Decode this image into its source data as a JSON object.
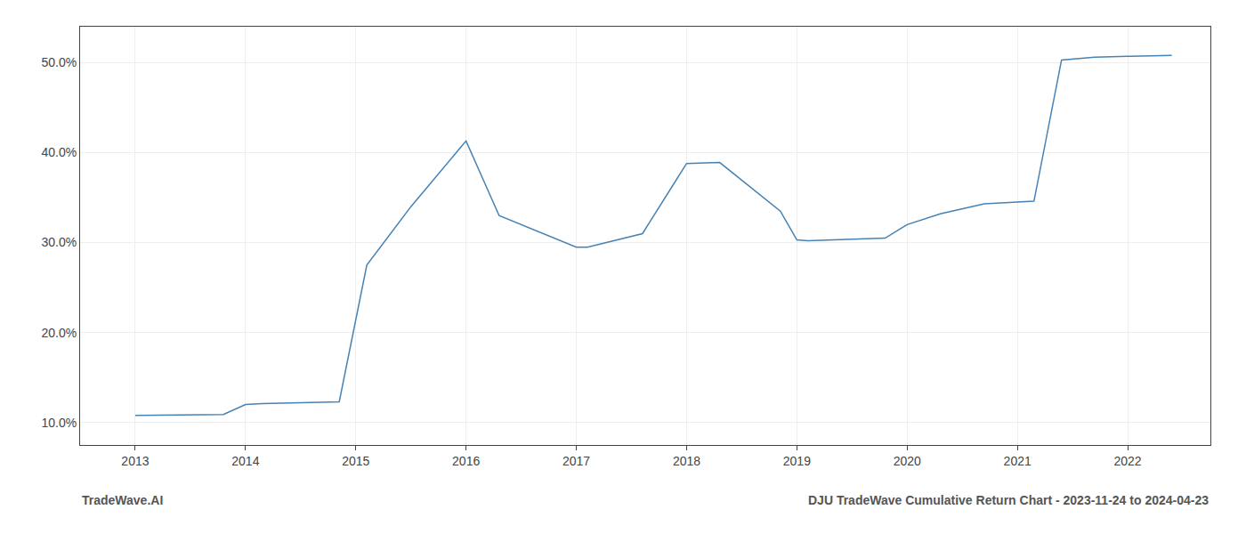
{
  "chart_data": {
    "type": "line",
    "title": "DJU TradeWave Cumulative Return Chart - 2023-11-24 to 2024-04-23",
    "annotations": [
      "TradeWave.AI"
    ],
    "x": [
      2013.0,
      2013.8,
      2014.0,
      2014.15,
      2014.85,
      2015.1,
      2015.5,
      2016.0,
      2016.3,
      2017.0,
      2017.1,
      2017.6,
      2018.0,
      2018.3,
      2018.85,
      2019.0,
      2019.1,
      2019.8,
      2020.0,
      2020.3,
      2020.7,
      2021.0,
      2021.15,
      2021.4,
      2021.7,
      2022.0,
      2022.4
    ],
    "values": [
      10.8,
      10.9,
      12.0,
      12.1,
      12.3,
      27.5,
      34.0,
      41.3,
      33.0,
      29.5,
      29.5,
      31.0,
      38.8,
      38.9,
      33.5,
      30.3,
      30.2,
      30.5,
      32.0,
      33.2,
      34.3,
      34.5,
      34.6,
      50.3,
      50.6,
      50.7,
      50.8
    ],
    "color": "#4682b4",
    "xlim": [
      2012.5,
      2022.75
    ],
    "ylim": [
      7.5,
      54.0
    ],
    "xticks": [
      2013,
      2014,
      2015,
      2016,
      2017,
      2018,
      2019,
      2020,
      2021,
      2022
    ],
    "yticks": [
      {
        "value": 10.0,
        "label": "10.0%"
      },
      {
        "value": 20.0,
        "label": "20.0%"
      },
      {
        "value": 30.0,
        "label": "30.0%"
      },
      {
        "value": 40.0,
        "label": "40.0%"
      },
      {
        "value": 50.0,
        "label": "50.0%"
      }
    ],
    "grid": true
  }
}
